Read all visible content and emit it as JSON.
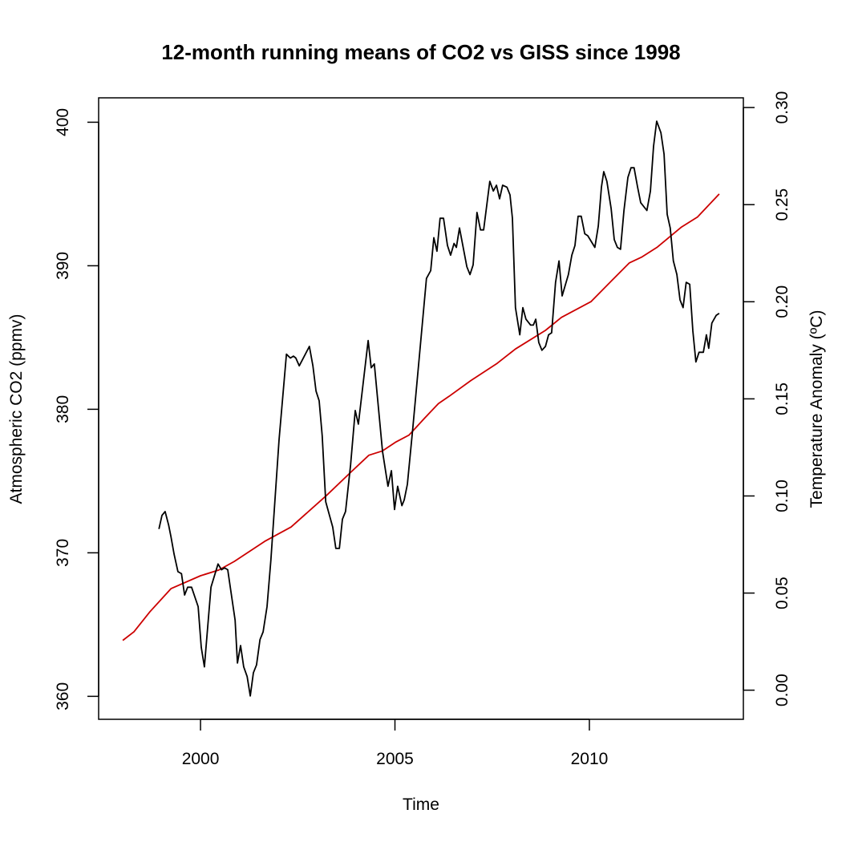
{
  "chart_data": {
    "type": "line",
    "title": "12-month running means of CO2 vs GISS since 1998",
    "xlabel": "Time",
    "ylabel_left": "Atmospheric CO2 (ppmv)",
    "ylabel_right": "Temperature Anomaly (ºC)",
    "xlim": [
      1997.38,
      2013.96
    ],
    "ylim_left": [
      358.4,
      401.7
    ],
    "ylim_right": [
      -0.015,
      0.305
    ],
    "x_ticks": [
      2000,
      2005,
      2010
    ],
    "x_tick_labels": [
      "2000",
      "2005",
      "2010"
    ],
    "y_left_ticks": [
      360,
      370,
      380,
      390,
      400
    ],
    "y_left_tick_labels": [
      "360",
      "370",
      "380",
      "390",
      "400"
    ],
    "y_right_ticks": [
      0,
      0.05,
      0.1,
      0.15,
      0.2,
      0.25,
      0.3
    ],
    "y_right_tick_labels": [
      "0.00",
      "0.05",
      "0.10",
      "0.15",
      "0.20",
      "0.25",
      "0.30"
    ],
    "grid": false,
    "legend": "none",
    "series": [
      {
        "axis": "left",
        "color": "#cc0000",
        "x": [
          1998.0,
          1998.29,
          1998.7,
          1999.24,
          2000.0,
          2000.47,
          2000.87,
          2001.65,
          2002.33,
          2003.24,
          2003.86,
          2004.33,
          2004.68,
          2005.01,
          2005.36,
          2005.77,
          2006.12,
          2006.39,
          2006.95,
          2007.63,
          2008.1,
          2008.87,
          2009.28,
          2010.04,
          2010.66,
          2011.03,
          2011.34,
          2011.75,
          2012.37,
          2012.78,
          2013.34
        ],
        "y": [
          363.9,
          364.5,
          365.9,
          367.5,
          368.4,
          368.8,
          369.4,
          370.8,
          371.8,
          374.0,
          375.6,
          376.8,
          377.1,
          377.7,
          378.2,
          379.4,
          380.4,
          380.9,
          382.0,
          383.2,
          384.2,
          385.5,
          386.4,
          387.5,
          389.2,
          390.2,
          390.6,
          391.3,
          392.7,
          393.4,
          395.0
        ]
      },
      {
        "axis": "right",
        "color": "#000000",
        "x": [
          1998.93,
          1999.01,
          1999.09,
          1999.18,
          1999.24,
          1999.32,
          1999.42,
          1999.51,
          1999.59,
          1999.67,
          1999.77,
          1999.94,
          2000.02,
          2000.1,
          2000.27,
          2000.45,
          2000.54,
          2000.62,
          2000.7,
          2000.78,
          2000.89,
          2000.95,
          2001.03,
          2001.11,
          2001.2,
          2001.28,
          2001.36,
          2001.44,
          2001.53,
          2001.61,
          2001.71,
          2001.81,
          2002.02,
          2002.21,
          2002.31,
          2002.39,
          2002.45,
          2002.54,
          2002.8,
          2002.89,
          2002.97,
          2003.05,
          2003.13,
          2003.22,
          2003.4,
          2003.48,
          2003.57,
          2003.65,
          2003.73,
          2003.86,
          2003.98,
          2004.06,
          2004.31,
          2004.39,
          2004.47,
          2004.68,
          2004.82,
          2004.91,
          2004.99,
          2005.07,
          2005.18,
          2005.24,
          2005.32,
          2005.46,
          2005.61,
          2005.81,
          2005.92,
          2006.0,
          2006.08,
          2006.16,
          2006.25,
          2006.35,
          2006.43,
          2006.52,
          2006.58,
          2006.66,
          2006.85,
          2006.93,
          2007.01,
          2007.11,
          2007.2,
          2007.28,
          2007.44,
          2007.53,
          2007.61,
          2007.69,
          2007.77,
          2007.88,
          2007.96,
          2008.02,
          2008.1,
          2008.21,
          2008.29,
          2008.37,
          2008.49,
          2008.56,
          2008.62,
          2008.7,
          2008.78,
          2008.87,
          2008.95,
          2009.03,
          2009.13,
          2009.22,
          2009.3,
          2009.46,
          2009.55,
          2009.63,
          2009.71,
          2009.79,
          2009.88,
          2009.96,
          2010.14,
          2010.23,
          2010.31,
          2010.37,
          2010.45,
          2010.56,
          2010.64,
          2010.72,
          2010.8,
          2010.89,
          2010.99,
          2011.07,
          2011.15,
          2011.24,
          2011.32,
          2011.48,
          2011.57,
          2011.65,
          2011.73,
          2011.84,
          2011.92,
          2012.0,
          2012.08,
          2012.16,
          2012.25,
          2012.33,
          2012.41,
          2012.49,
          2012.58,
          2012.66,
          2012.74,
          2012.82,
          2012.93,
          2013.01,
          2013.07,
          2013.15,
          2013.26,
          2013.34
        ],
        "y": [
          0.083,
          0.09,
          0.092,
          0.085,
          0.079,
          0.07,
          0.061,
          0.06,
          0.049,
          0.053,
          0.053,
          0.043,
          0.022,
          0.012,
          0.053,
          0.065,
          0.062,
          0.063,
          0.062,
          0.051,
          0.036,
          0.014,
          0.023,
          0.012,
          0.007,
          -0.003,
          0.009,
          0.013,
          0.026,
          0.03,
          0.043,
          0.067,
          0.129,
          0.173,
          0.171,
          0.172,
          0.171,
          0.167,
          0.177,
          0.167,
          0.154,
          0.149,
          0.131,
          0.097,
          0.084,
          0.073,
          0.073,
          0.088,
          0.092,
          0.116,
          0.144,
          0.137,
          0.18,
          0.166,
          0.168,
          0.123,
          0.105,
          0.113,
          0.093,
          0.105,
          0.095,
          0.098,
          0.106,
          0.135,
          0.168,
          0.212,
          0.216,
          0.233,
          0.226,
          0.243,
          0.243,
          0.229,
          0.224,
          0.23,
          0.228,
          0.238,
          0.218,
          0.214,
          0.219,
          0.246,
          0.237,
          0.237,
          0.262,
          0.257,
          0.26,
          0.253,
          0.26,
          0.259,
          0.255,
          0.243,
          0.197,
          0.183,
          0.197,
          0.191,
          0.188,
          0.188,
          0.191,
          0.179,
          0.175,
          0.177,
          0.183,
          0.184,
          0.21,
          0.221,
          0.203,
          0.214,
          0.224,
          0.229,
          0.244,
          0.244,
          0.235,
          0.234,
          0.228,
          0.239,
          0.259,
          0.267,
          0.262,
          0.248,
          0.232,
          0.228,
          0.227,
          0.247,
          0.264,
          0.269,
          0.269,
          0.259,
          0.251,
          0.247,
          0.257,
          0.28,
          0.293,
          0.287,
          0.276,
          0.245,
          0.238,
          0.221,
          0.214,
          0.201,
          0.197,
          0.21,
          0.209,
          0.185,
          0.169,
          0.174,
          0.174,
          0.183,
          0.176,
          0.189,
          0.193,
          0.194
        ]
      }
    ]
  }
}
